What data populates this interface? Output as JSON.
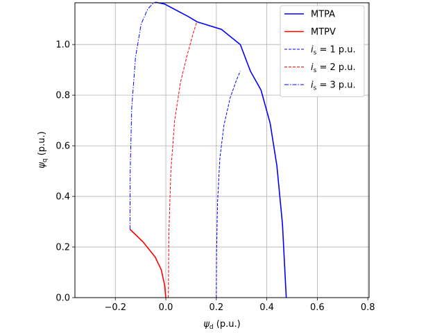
{
  "chart_data": {
    "type": "line",
    "xlabel": {
      "main": "ψ",
      "sub": "d",
      "unit": " (p.u.)"
    },
    "ylabel": {
      "main": "ψ",
      "sub": "q",
      "unit": " (p.u.)"
    },
    "xlim": [
      -0.36,
      0.805
    ],
    "ylim": [
      0.0,
      1.165
    ],
    "xticks": [
      -0.2,
      0.0,
      0.2,
      0.4,
      0.6,
      0.8
    ],
    "xtick_labels": [
      "−0.2",
      "0.0",
      "0.2",
      "0.4",
      "0.6",
      "0.8"
    ],
    "yticks": [
      0.0,
      0.2,
      0.4,
      0.6,
      0.8,
      1.0
    ],
    "ytick_labels": [
      "0.0",
      "0.2",
      "0.4",
      "0.6",
      "0.8",
      "1.0"
    ],
    "grid": true,
    "legend_position": "top-right",
    "series": [
      {
        "name": "MTPA",
        "color": "#0000ff",
        "style": "solid",
        "x": [
          0.477,
          0.462,
          0.44,
          0.413,
          0.377,
          0.335,
          0.295,
          0.22,
          0.123,
          0.09,
          -0.005,
          -0.04
        ],
        "y": [
          0.0,
          0.29,
          0.52,
          0.69,
          0.82,
          0.895,
          1.0,
          1.06,
          1.09,
          1.11,
          1.16,
          1.167
        ]
      },
      {
        "name": "MTPV",
        "color": "#ff0000",
        "style": "solid",
        "x": [
          0.0,
          -0.005,
          -0.018,
          -0.042,
          -0.09,
          -0.142
        ],
        "y": [
          0.0,
          0.05,
          0.11,
          0.16,
          0.22,
          0.27
        ]
      },
      {
        "name_parts": {
          "main": "i",
          "sub": "s",
          "rest": " =  1 p.u."
        },
        "color": "#0000ff",
        "style": "dashed",
        "x": [
          0.2,
          0.201,
          0.205,
          0.214,
          0.23,
          0.255,
          0.28,
          0.295
        ],
        "y": [
          0.0,
          0.18,
          0.38,
          0.55,
          0.68,
          0.79,
          0.86,
          0.895
        ]
      },
      {
        "name_parts": {
          "main": "i",
          "sub": "s",
          "rest": " =  2 p.u."
        },
        "color": "#ff0000",
        "style": "dashed",
        "x": [
          0.01,
          0.012,
          0.02,
          0.035,
          0.058,
          0.085,
          0.11,
          0.123
        ],
        "y": [
          0.0,
          0.25,
          0.5,
          0.7,
          0.85,
          0.96,
          1.05,
          1.09
        ]
      },
      {
        "name_parts": {
          "main": "i",
          "sub": "s",
          "rest": " =  3 p.u."
        },
        "color": "#0000ff",
        "style": "dashdot",
        "x": [
          -0.142,
          -0.141,
          -0.135,
          -0.12,
          -0.098,
          -0.072,
          -0.048,
          -0.04
        ],
        "y": [
          0.27,
          0.5,
          0.75,
          0.95,
          1.08,
          1.14,
          1.165,
          1.167
        ]
      }
    ]
  }
}
